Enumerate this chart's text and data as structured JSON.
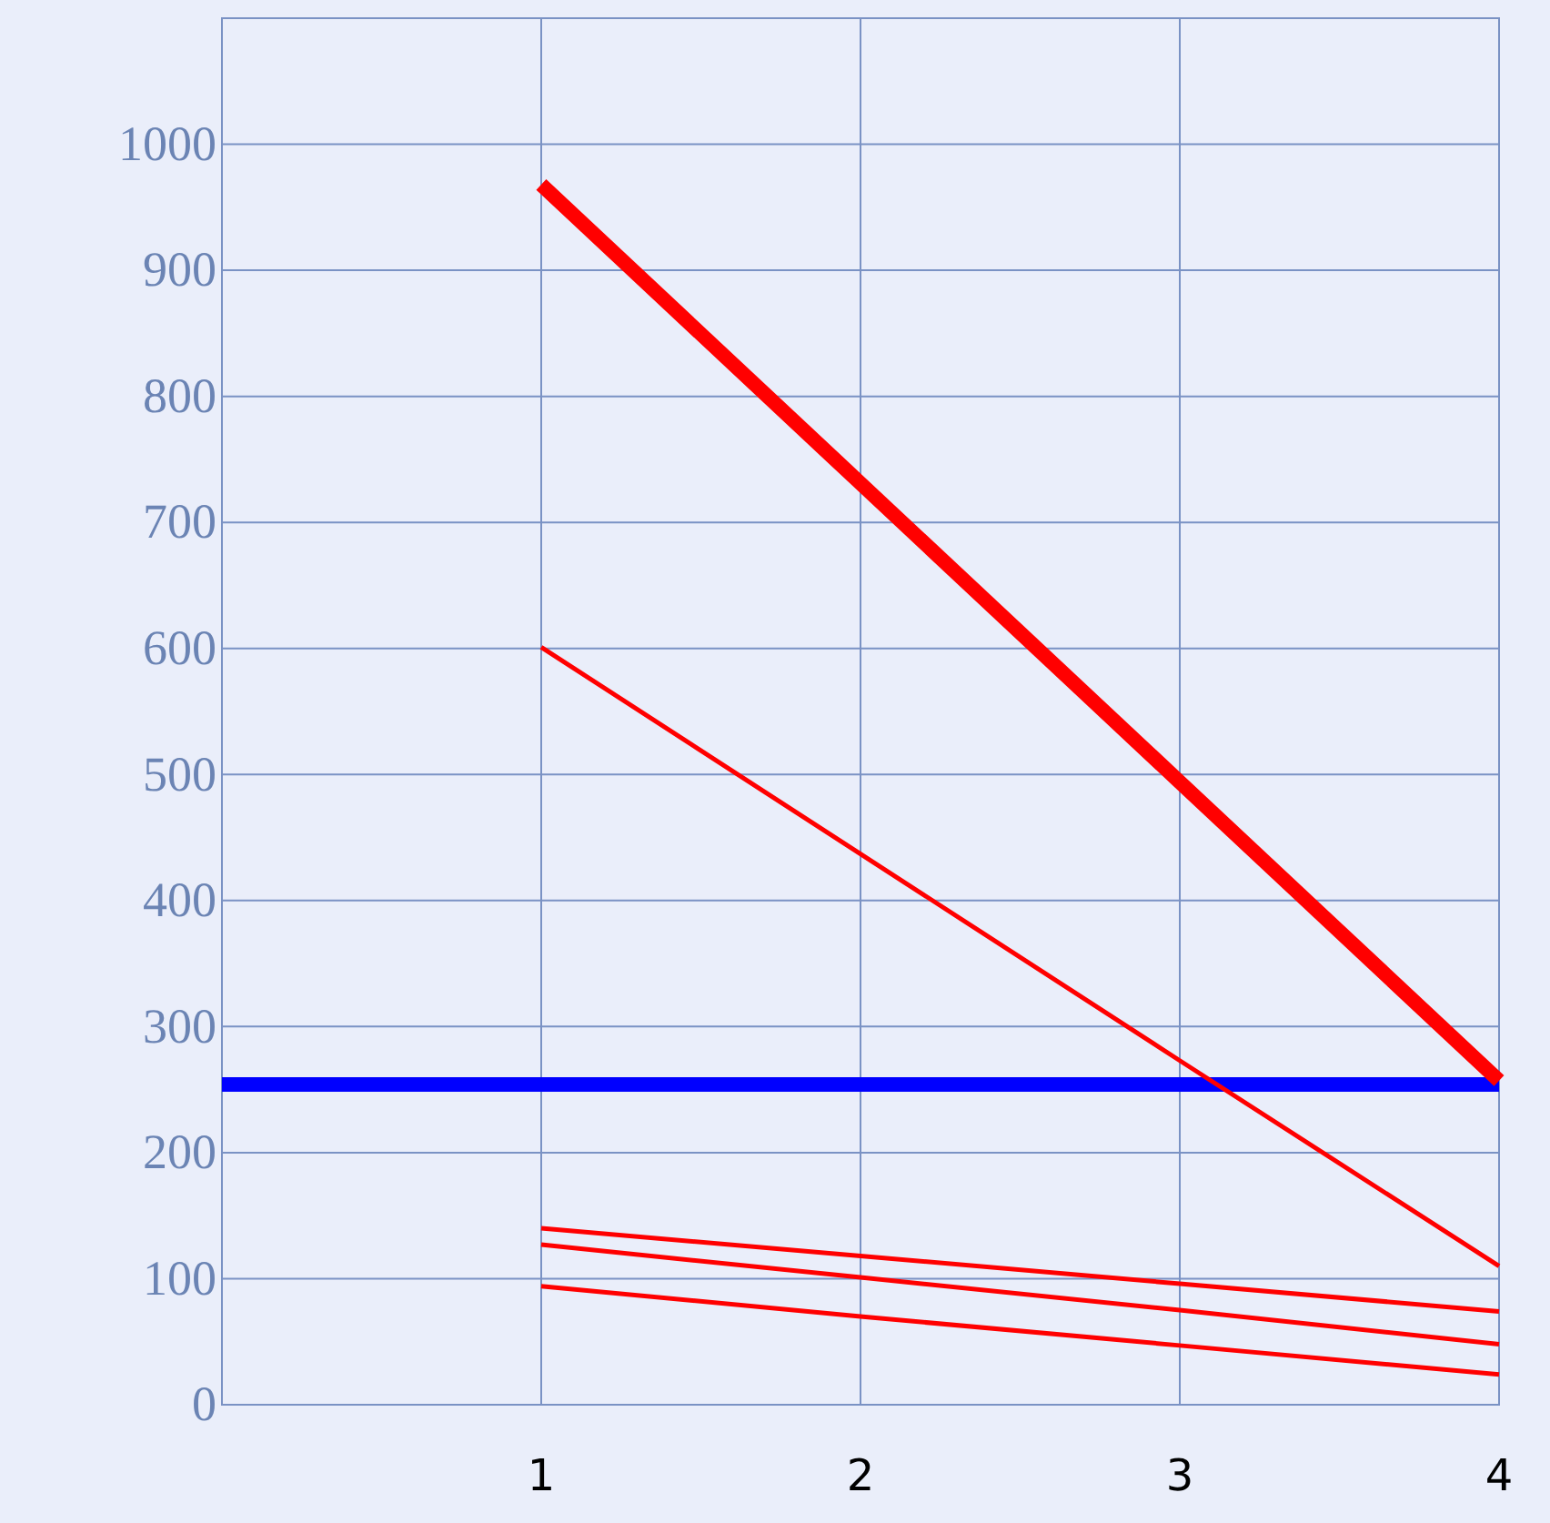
{
  "chart_data": {
    "type": "line",
    "x": [
      1,
      2,
      3,
      4
    ],
    "series": [
      {
        "color": "#ff0000",
        "values": [
          968,
          731,
          494,
          257
        ]
      },
      {
        "color": "#ff0000",
        "values": [
          601,
          437,
          273,
          110
        ]
      },
      {
        "color": "#ff0000",
        "values": [
          140,
          118,
          96,
          74
        ]
      },
      {
        "color": "#ff0000",
        "values": [
          127,
          101,
          75,
          48
        ]
      },
      {
        "color": "#ff0000",
        "values": [
          94,
          70,
          47,
          24
        ]
      }
    ],
    "xlim": [
      0,
      4
    ],
    "xticks": [
      1,
      2,
      3,
      4
    ],
    "ylim": [
      0,
      1100
    ],
    "yticks": [
      0,
      100,
      200,
      300,
      400,
      500,
      600,
      700,
      800,
      900,
      1000
    ],
    "ref_lines": [
      {
        "axis": "y",
        "value": 254,
        "color": "#0000ff"
      }
    ],
    "grid": true,
    "marker": "none",
    "line_style": "solid"
  }
}
